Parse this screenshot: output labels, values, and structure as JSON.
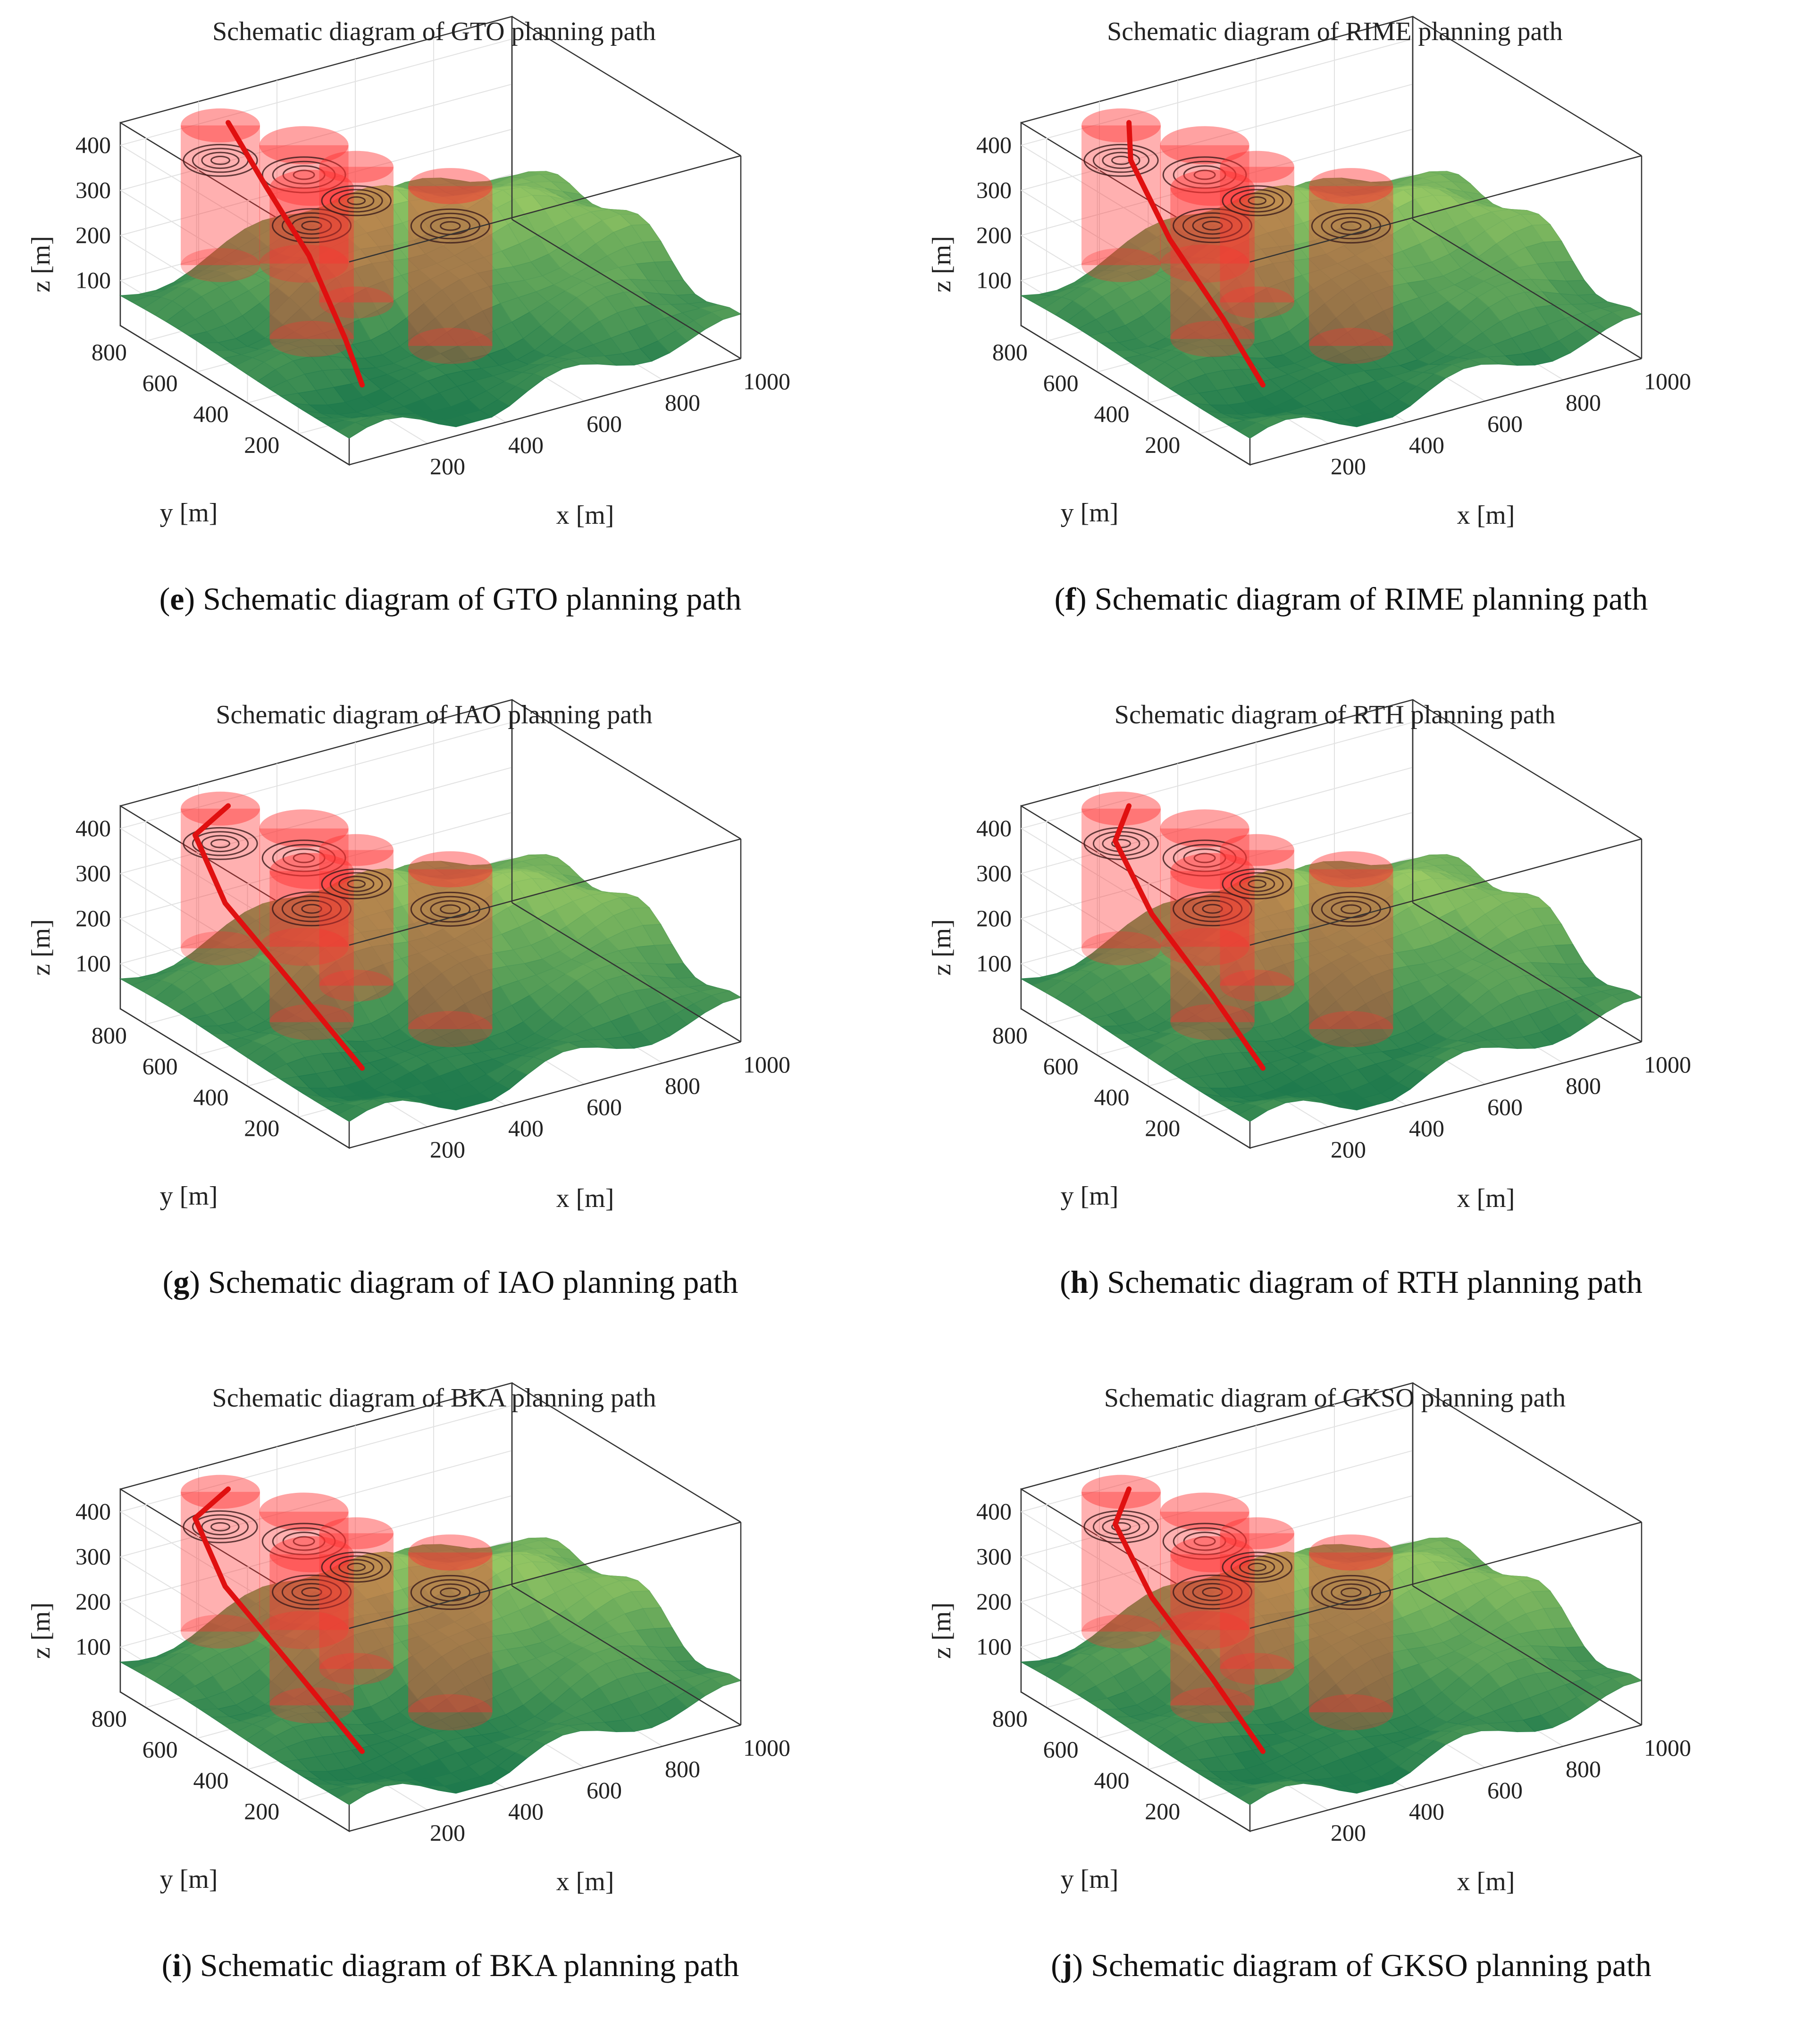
{
  "figure": {
    "panels": [
      {
        "letter": "e",
        "caption": "Schematic diagram of GTO planning path"
      },
      {
        "letter": "f",
        "caption": "Schematic diagram of RIME planning path"
      },
      {
        "letter": "g",
        "caption": "Schematic diagram of IAO planning path"
      },
      {
        "letter": "h",
        "caption": "Schematic diagram of RTH planning path"
      },
      {
        "letter": "i",
        "caption": "Schematic diagram of BKA planning path"
      },
      {
        "letter": "j",
        "caption": "Schematic diagram of GKSO planning path"
      }
    ]
  },
  "colors": {
    "path": "#e01010",
    "threat_cylinder": "#ff3030",
    "terrain_low": "#1f7a4d",
    "terrain_high": "#b6dc6a",
    "grid": "#e2e2e2",
    "axis": "#333333"
  },
  "chart_data": [
    {
      "type": "surface3d",
      "title": "Schematic diagram of GTO planning path",
      "xlabel": "x [m]",
      "ylabel": "y [m]",
      "zlabel": "z [m]",
      "x_ticks": [
        "200",
        "400",
        "600",
        "800",
        "1000"
      ],
      "y_ticks": [
        "200",
        "400",
        "600",
        "800"
      ],
      "z_ticks": [
        "100",
        "200",
        "300",
        "400"
      ],
      "xlim": [
        0,
        1000
      ],
      "ylim": [
        0,
        900
      ],
      "zlim": [
        0,
        450
      ],
      "series": [
        {
          "values": [
            [
              230,
              830,
              420
            ],
            [
              190,
              620,
              360
            ],
            [
              170,
              420,
              280
            ],
            [
              160,
              260,
              150
            ],
            [
              150,
              180,
              80
            ]
          ]
        }
      ]
    },
    {
      "type": "surface3d",
      "title": "Schematic diagram of RIME planning path",
      "xlabel": "x [m]",
      "ylabel": "y [m]",
      "zlabel": "z [m]",
      "x_ticks": [
        "200",
        "400",
        "600",
        "800",
        "1000"
      ],
      "y_ticks": [
        "200",
        "400",
        "600",
        "800"
      ],
      "z_ticks": [
        "100",
        "200",
        "300",
        "400"
      ],
      "xlim": [
        0,
        1000
      ],
      "ylim": [
        0,
        900
      ],
      "zlim": [
        0,
        450
      ],
      "series": [
        {
          "values": [
            [
              230,
              830,
              420
            ],
            [
              150,
              700,
              400
            ],
            [
              120,
              500,
              300
            ],
            [
              140,
              320,
              180
            ],
            [
              150,
              180,
              80
            ]
          ]
        }
      ]
    },
    {
      "type": "surface3d",
      "title": "Schematic diagram of IAO planning path",
      "xlabel": "x [m]",
      "ylabel": "y [m]",
      "zlabel": "z [m]",
      "x_ticks": [
        "200",
        "400",
        "600",
        "800",
        "1000"
      ],
      "y_ticks": [
        "200",
        "400",
        "600",
        "800"
      ],
      "z_ticks": [
        "100",
        "200",
        "300",
        "400"
      ],
      "xlim": [
        0,
        1000
      ],
      "ylim": [
        0,
        900
      ],
      "zlim": [
        0,
        450
      ],
      "series": [
        {
          "values": [
            [
              230,
              830,
              420
            ],
            [
              100,
              760,
              410
            ],
            [
              60,
              580,
              330
            ],
            [
              110,
              380,
              200
            ],
            [
              150,
              180,
              80
            ]
          ]
        }
      ]
    },
    {
      "type": "surface3d",
      "title": "Schematic diagram of RTH planning path",
      "xlabel": "x [m]",
      "ylabel": "y [m]",
      "zlabel": "z [m]",
      "x_ticks": [
        "200",
        "400",
        "600",
        "800",
        "1000"
      ],
      "y_ticks": [
        "200",
        "400",
        "600",
        "800"
      ],
      "z_ticks": [
        "100",
        "200",
        "300",
        "400"
      ],
      "xlim": [
        0,
        1000
      ],
      "ylim": [
        0,
        900
      ],
      "zlim": [
        0,
        450
      ],
      "series": [
        {
          "values": [
            [
              230,
              830,
              420
            ],
            [
              130,
              730,
              400
            ],
            [
              100,
              540,
              310
            ],
            [
              130,
              350,
              190
            ],
            [
              150,
              180,
              80
            ]
          ]
        }
      ]
    },
    {
      "type": "surface3d",
      "title": "Schematic diagram of BKA planning path",
      "xlabel": "x [m]",
      "ylabel": "y [m]",
      "zlabel": "z [m]",
      "x_ticks": [
        "200",
        "400",
        "600",
        "800",
        "1000"
      ],
      "y_ticks": [
        "200",
        "400",
        "600",
        "800"
      ],
      "z_ticks": [
        "100",
        "200",
        "300",
        "400"
      ],
      "xlim": [
        0,
        1000
      ],
      "ylim": [
        0,
        900
      ],
      "zlim": [
        0,
        450
      ],
      "series": [
        {
          "values": [
            [
              230,
              830,
              420
            ],
            [
              100,
              760,
              410
            ],
            [
              60,
              580,
              330
            ],
            [
              110,
              380,
              200
            ],
            [
              150,
              180,
              80
            ]
          ]
        }
      ]
    },
    {
      "type": "surface3d",
      "title": "Schematic diagram of GKSO planning path",
      "xlabel": "x [m]",
      "ylabel": "y [m]",
      "zlabel": "z [m]",
      "x_ticks": [
        "200",
        "400",
        "600",
        "800",
        "1000"
      ],
      "y_ticks": [
        "200",
        "400",
        "600",
        "800"
      ],
      "z_ticks": [
        "100",
        "200",
        "300",
        "400"
      ],
      "xlim": [
        0,
        1000
      ],
      "ylim": [
        0,
        900
      ],
      "zlim": [
        0,
        450
      ],
      "series": [
        {
          "values": [
            [
              230,
              830,
              420
            ],
            [
              130,
              730,
              400
            ],
            [
              100,
              540,
              310
            ],
            [
              130,
              350,
              190
            ],
            [
              150,
              180,
              80
            ]
          ]
        }
      ]
    }
  ]
}
